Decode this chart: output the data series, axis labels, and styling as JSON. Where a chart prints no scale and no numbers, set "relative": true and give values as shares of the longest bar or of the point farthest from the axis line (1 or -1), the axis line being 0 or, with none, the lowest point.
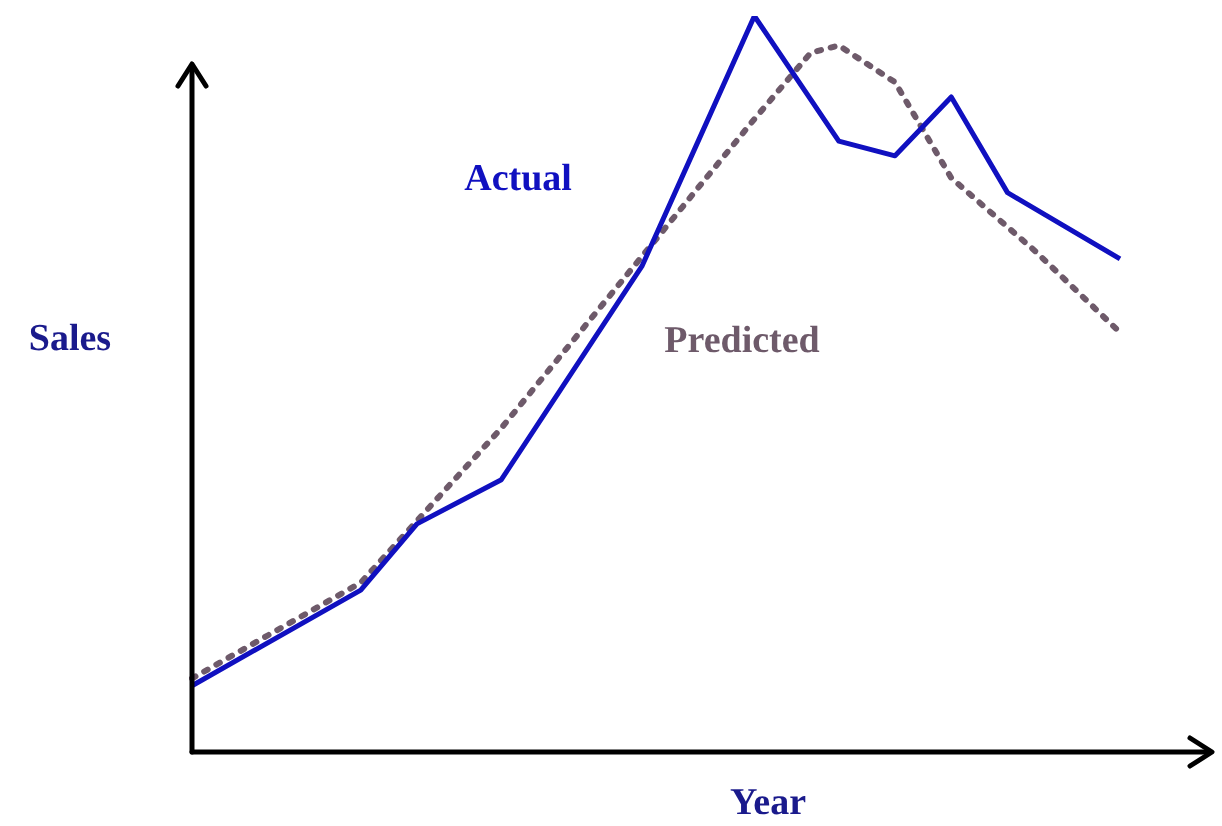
{
  "chart_data": {
    "type": "line",
    "relative": true,
    "xlabel": "Year",
    "ylabel": "Sales",
    "legend": false,
    "marker": "none",
    "categories": [
      null,
      null,
      null,
      null,
      null,
      null,
      null,
      null,
      null,
      null,
      null,
      null,
      null,
      null,
      null,
      null,
      null,
      null,
      null,
      null,
      null,
      null,
      null,
      null,
      null,
      null,
      null,
      null,
      null,
      null,
      null,
      null,
      null,
      null
    ],
    "series": [
      {
        "name": "Actual",
        "color": "#1010c0",
        "line_style": "solid",
        "values": [
          0.09,
          null,
          null,
          null,
          null,
          null,
          0.22,
          null,
          0.31,
          null,
          null,
          0.37,
          null,
          null,
          null,
          null,
          0.66,
          null,
          0.83,
          null,
          1,
          null,
          null,
          0.83,
          null,
          0.81,
          null,
          0.89,
          null,
          0.76,
          null,
          null,
          null,
          0.67
        ]
      },
      {
        "name": "Predicted",
        "color": "#6e5a6a",
        "line_style": "dotted",
        "values": [
          0.1,
          null,
          null,
          null,
          null,
          null,
          0.23,
          null,
          null,
          null,
          null,
          0.44,
          null,
          null,
          null,
          null,
          null,
          0.72,
          null,
          null,
          0.86,
          null,
          0.95,
          0.96,
          null,
          0.91,
          null,
          0.78,
          null,
          null,
          0.68,
          null,
          null,
          0.57
        ]
      }
    ]
  }
}
